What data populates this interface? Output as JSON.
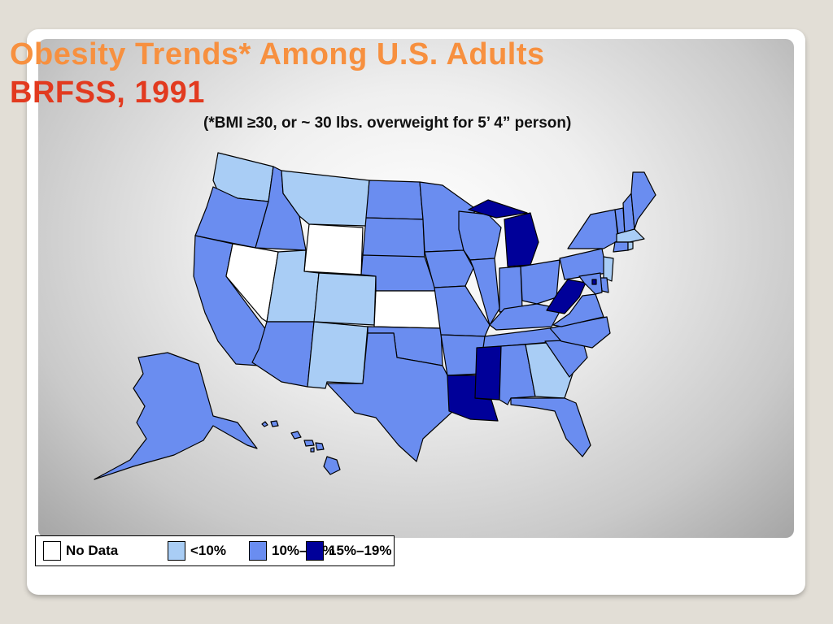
{
  "slide": {
    "title_line1": "Obesity Trends* Among U.S. Adults",
    "title_line2": "BRFSS, 1991",
    "subtitle": "(*BMI ≥30, or ~ 30 lbs. overweight for 5’ 4” person)"
  },
  "legend": {
    "items": [
      {
        "label": "No Data",
        "color": "#ffffff"
      },
      {
        "label": "<10%",
        "color": "#a9cdf5"
      },
      {
        "label": "10%–14%",
        "color": "#6a8df0"
      },
      {
        "label": "15%–19%",
        "color": "#000099"
      }
    ]
  },
  "map_data": {
    "categories": {
      "no_data": "#ffffff",
      "lt10": "#a9cdf5",
      "10to14": "#6a8df0",
      "15to19": "#000099"
    },
    "states": {
      "WA": "lt10",
      "OR": "10to14",
      "CA": "10to14",
      "NV": "no_data",
      "ID": "10to14",
      "MT": "lt10",
      "WY": "no_data",
      "UT": "lt10",
      "CO": "lt10",
      "AZ": "10to14",
      "NM": "lt10",
      "ND": "10to14",
      "SD": "10to14",
      "NE": "10to14",
      "KS": "no_data",
      "OK": "10to14",
      "TX": "10to14",
      "MN": "10to14",
      "IA": "10to14",
      "MO": "10to14",
      "AR": "10to14",
      "LA": "15to19",
      "WI": "10to14",
      "IL": "10to14",
      "MI": "15to19",
      "IN": "10to14",
      "OH": "10to14",
      "KY": "10to14",
      "TN": "10to14",
      "MS": "15to19",
      "AL": "10to14",
      "GA": "lt10",
      "FL": "10to14",
      "SC": "10to14",
      "NC": "10to14",
      "VA": "10to14",
      "WV": "15to19",
      "PA": "10to14",
      "NY": "10to14",
      "VT": "10to14",
      "NH": "10to14",
      "ME": "10to14",
      "MA": "lt10",
      "CT": "10to14",
      "RI": "lt10",
      "NJ": "lt10",
      "DE": "10to14",
      "MD": "10to14",
      "DC": "15to19",
      "AK": "10to14",
      "HI": "10to14"
    }
  }
}
